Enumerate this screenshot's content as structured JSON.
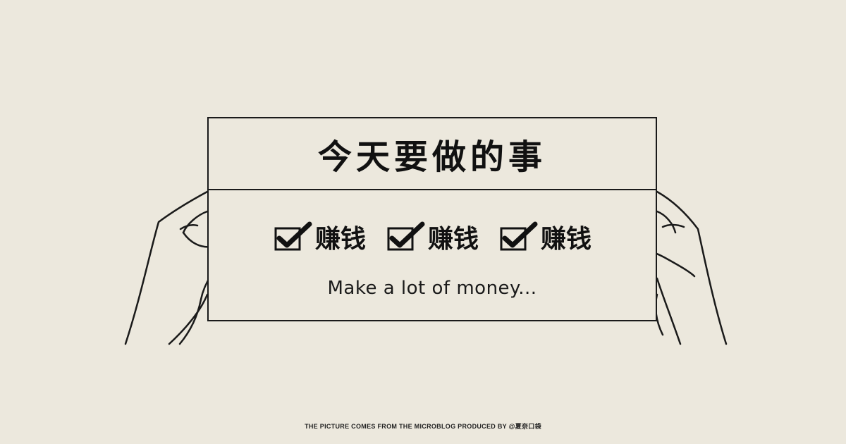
{
  "card": {
    "title": "今天要做的事",
    "items": [
      {
        "icon": "checked-box-icon",
        "label": "赚钱"
      },
      {
        "icon": "checked-box-icon",
        "label": "赚钱"
      },
      {
        "icon": "checked-box-icon",
        "label": "赚钱"
      }
    ],
    "subtitle": "Make a lot of money..."
  },
  "footer": {
    "credit": "THE PICTURE COMES FROM THE MICROBLOG PRODUCED BY @夏奈口袋"
  },
  "colors": {
    "background": "#ece8dd",
    "ink": "#111111"
  }
}
